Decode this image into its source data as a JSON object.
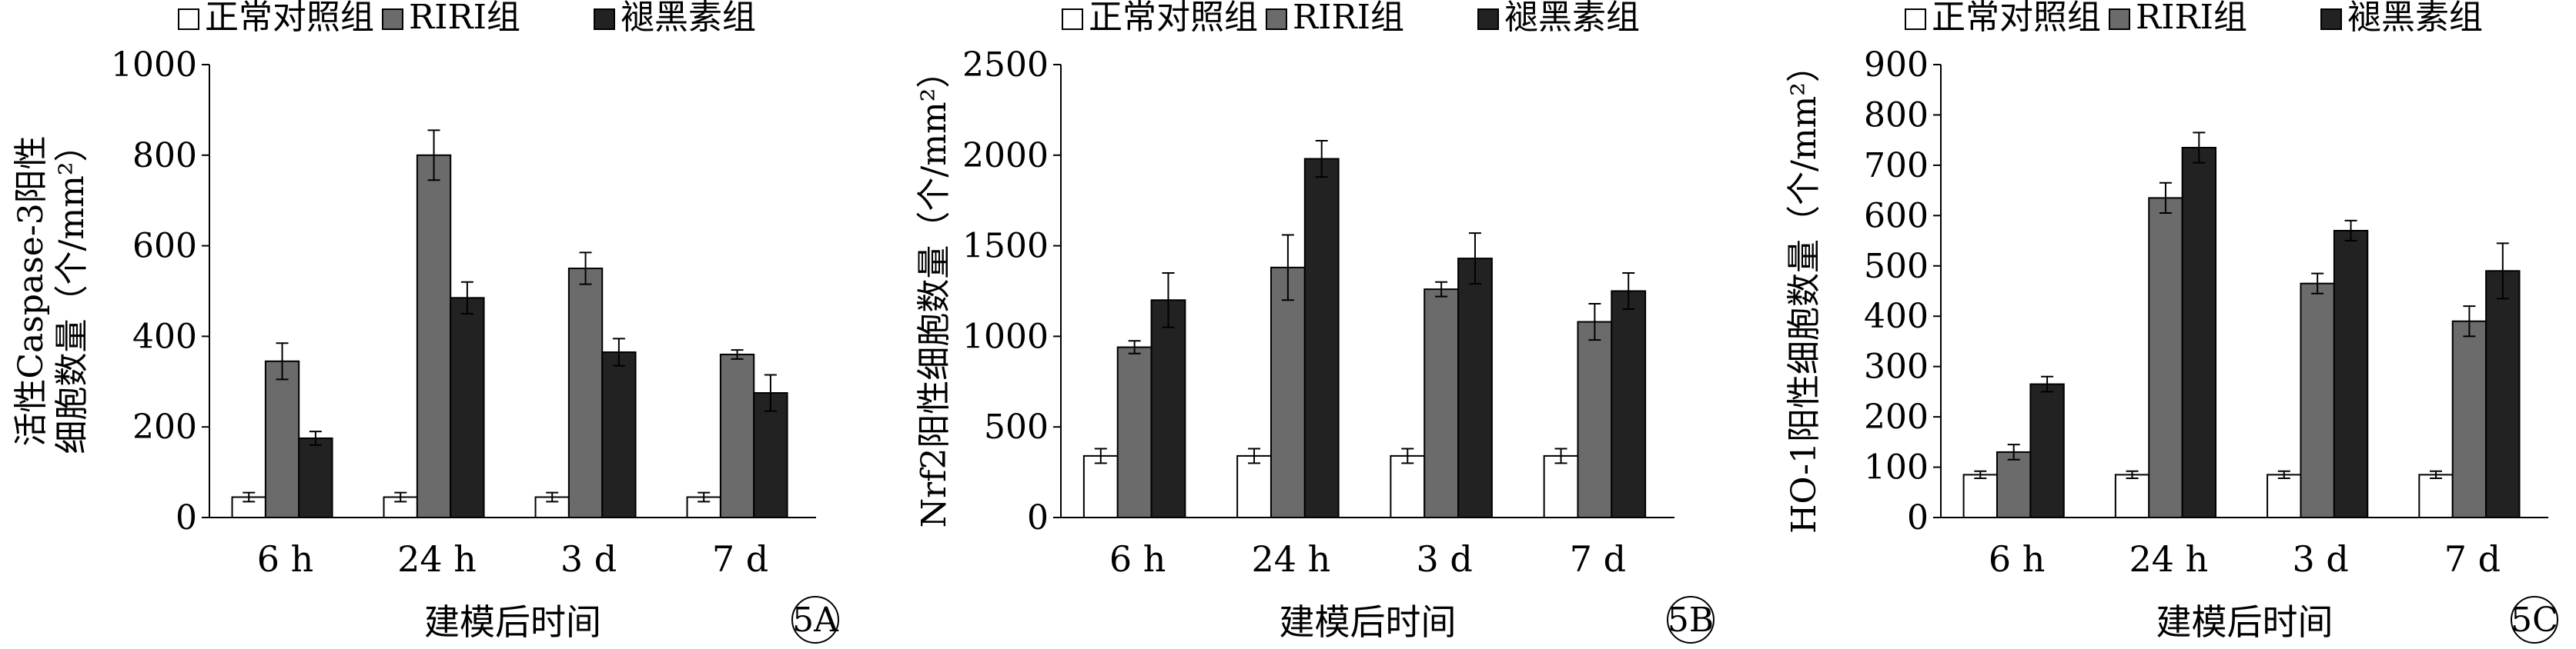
{
  "legend": [
    "正常对照组",
    "RIRI组",
    "褪黑素组"
  ],
  "colors": {
    "normal": "#ffffff",
    "riri": "#6b6b6b",
    "mel": "#222222",
    "stroke": "#000000"
  },
  "chart_data": [
    {
      "type": "bar",
      "panel_label": "5A",
      "categories": [
        "6 h",
        "24 h",
        "3 d",
        "7 d"
      ],
      "xlabel": "建模后时间",
      "ylabel_lines": [
        "活性Caspase-3阳性",
        "细胞数量（个/mm²）"
      ],
      "ylim": [
        0,
        1000
      ],
      "yticks": [
        0,
        200,
        400,
        600,
        800,
        1000
      ],
      "series": [
        {
          "name": "正常对照组",
          "values": [
            45,
            45,
            45,
            45
          ],
          "errors": [
            10,
            10,
            10,
            10
          ]
        },
        {
          "name": "RIRI组",
          "values": [
            345,
            800,
            550,
            360
          ],
          "errors": [
            40,
            55,
            35,
            10
          ]
        },
        {
          "name": "褪黑素组",
          "values": [
            175,
            485,
            365,
            275
          ],
          "errors": [
            15,
            35,
            30,
            40
          ]
        }
      ]
    },
    {
      "type": "bar",
      "panel_label": "5B",
      "categories": [
        "6 h",
        "24 h",
        "3 d",
        "7 d"
      ],
      "xlabel": "建模后时间",
      "ylabel_lines": [
        "Nrf2阳性细胞数量（个/mm²）"
      ],
      "ylim": [
        0,
        2500
      ],
      "yticks": [
        0,
        500,
        1000,
        1500,
        2000,
        2500
      ],
      "series": [
        {
          "name": "正常对照组",
          "values": [
            340,
            340,
            340,
            340
          ],
          "errors": [
            40,
            40,
            40,
            40
          ]
        },
        {
          "name": "RIRI组",
          "values": [
            940,
            1380,
            1260,
            1080
          ],
          "errors": [
            35,
            180,
            40,
            100
          ]
        },
        {
          "name": "褪黑素组",
          "values": [
            1200,
            1980,
            1430,
            1250
          ],
          "errors": [
            150,
            100,
            140,
            100
          ]
        }
      ]
    },
    {
      "type": "bar",
      "panel_label": "5C",
      "categories": [
        "6 h",
        "24 h",
        "3 d",
        "7 d"
      ],
      "xlabel": "建模后时间",
      "ylabel_lines": [
        "HO-1阳性细胞数量（个/mm²）"
      ],
      "ylim": [
        0,
        900
      ],
      "yticks": [
        0,
        100,
        200,
        300,
        400,
        500,
        600,
        700,
        800,
        900
      ],
      "series": [
        {
          "name": "正常对照组",
          "values": [
            85,
            85,
            85,
            85
          ],
          "errors": [
            7,
            7,
            7,
            7
          ]
        },
        {
          "name": "RIRI组",
          "values": [
            130,
            635,
            465,
            390
          ],
          "errors": [
            15,
            30,
            20,
            30
          ]
        },
        {
          "name": "褪黑素组",
          "values": [
            265,
            735,
            570,
            490
          ],
          "errors": [
            15,
            30,
            20,
            55
          ]
        }
      ]
    }
  ]
}
